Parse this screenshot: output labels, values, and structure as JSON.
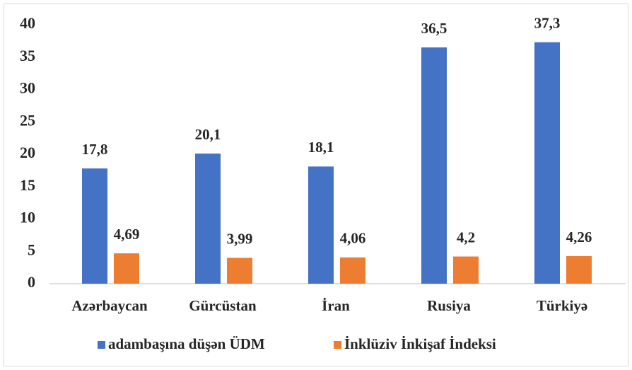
{
  "chart_data": {
    "type": "bar",
    "categories": [
      "Azərbaycan",
      "Gürcüstan",
      "İran",
      "Rusiya",
      "Türkiyə"
    ],
    "series": [
      {
        "name": "adambaşına düşən ÜDM",
        "color": "#4472c4",
        "values": [
          17.8,
          20.1,
          18.1,
          36.5,
          37.3
        ],
        "value_labels": [
          "17,8",
          "20,1",
          "18,1",
          "36,5",
          "37,3"
        ]
      },
      {
        "name": "İnklüziv İnkişaf İndeksi",
        "color": "#ed7d31",
        "values": [
          4.69,
          3.99,
          4.06,
          4.2,
          4.26
        ],
        "value_labels": [
          "4,69",
          "3,99",
          "4,06",
          "4,2",
          "4,26"
        ]
      }
    ],
    "ylim": [
      0,
      40
    ],
    "yticks": [
      0,
      5,
      10,
      15,
      20,
      25,
      30,
      35,
      40
    ],
    "grid": false,
    "legend": "bottom"
  }
}
